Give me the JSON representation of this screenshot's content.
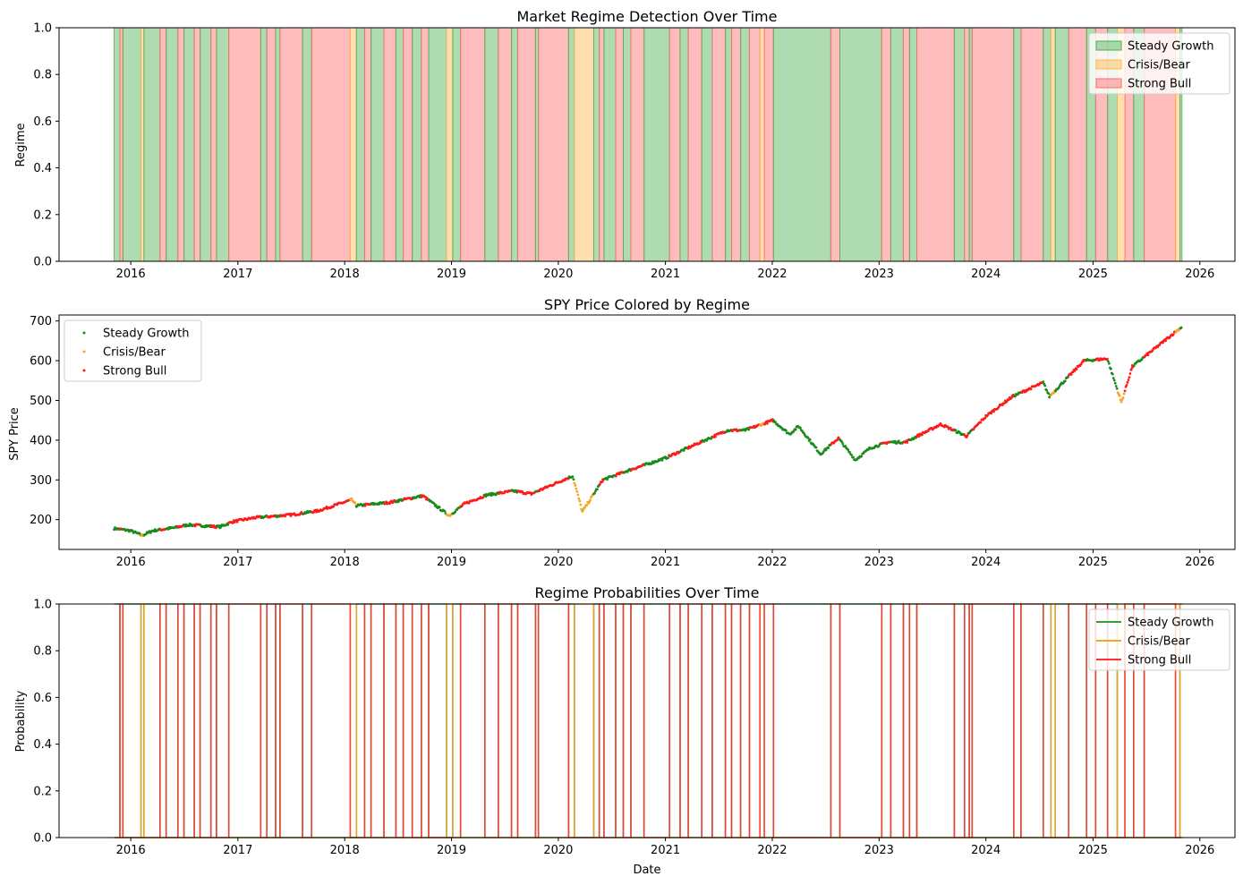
{
  "chart_data": [
    {
      "type": "area",
      "title": "Market Regime Detection Over Time",
      "xlabel": "",
      "ylabel": "Regime",
      "xlim": [
        "2015-05-01",
        "2026-05-01"
      ],
      "ylim": [
        0,
        1
      ],
      "yticks": [
        "0.0",
        "0.2",
        "0.4",
        "0.6",
        "0.8",
        "1.0"
      ],
      "xticks": [
        "2016",
        "2017",
        "2018",
        "2019",
        "2020",
        "2021",
        "2022",
        "2023",
        "2024",
        "2025",
        "2026"
      ],
      "legend": "top-right",
      "series": [
        {
          "name": "Steady Growth",
          "color": "#4caf50"
        },
        {
          "name": "Crisis/Bear",
          "color": "#ffb74d"
        },
        {
          "name": "Strong Bull",
          "color": "#ff6b6b"
        }
      ],
      "regime_spans": [
        {
          "start": "2015-11-05",
          "end": "2015-11-25",
          "regime": "Steady Growth"
        },
        {
          "start": "2015-11-25",
          "end": "2015-12-05",
          "regime": "Strong Bull"
        },
        {
          "start": "2015-12-05",
          "end": "2016-02-05",
          "regime": "Steady Growth"
        },
        {
          "start": "2016-02-05",
          "end": "2016-02-15",
          "regime": "Crisis/Bear"
        },
        {
          "start": "2016-02-15",
          "end": "2016-04-10",
          "regime": "Steady Growth"
        },
        {
          "start": "2016-04-10",
          "end": "2016-05-01",
          "regime": "Strong Bull"
        },
        {
          "start": "2016-05-01",
          "end": "2016-06-10",
          "regime": "Steady Growth"
        },
        {
          "start": "2016-06-10",
          "end": "2016-07-01",
          "regime": "Strong Bull"
        },
        {
          "start": "2016-07-01",
          "end": "2016-08-05",
          "regime": "Steady Growth"
        },
        {
          "start": "2016-08-05",
          "end": "2016-08-25",
          "regime": "Strong Bull"
        },
        {
          "start": "2016-08-25",
          "end": "2016-10-01",
          "regime": "Steady Growth"
        },
        {
          "start": "2016-10-01",
          "end": "2016-10-20",
          "regime": "Strong Bull"
        },
        {
          "start": "2016-10-20",
          "end": "2016-12-01",
          "regime": "Steady Growth"
        },
        {
          "start": "2016-12-01",
          "end": "2017-03-20",
          "regime": "Strong Bull"
        },
        {
          "start": "2017-03-20",
          "end": "2017-04-10",
          "regime": "Steady Growth"
        },
        {
          "start": "2017-04-10",
          "end": "2017-05-10",
          "regime": "Strong Bull"
        },
        {
          "start": "2017-05-10",
          "end": "2017-05-25",
          "regime": "Steady Growth"
        },
        {
          "start": "2017-05-25",
          "end": "2017-08-10",
          "regime": "Strong Bull"
        },
        {
          "start": "2017-08-10",
          "end": "2017-09-10",
          "regime": "Steady Growth"
        },
        {
          "start": "2017-09-10",
          "end": "2018-01-20",
          "regime": "Strong Bull"
        },
        {
          "start": "2018-01-20",
          "end": "2018-02-10",
          "regime": "Crisis/Bear"
        },
        {
          "start": "2018-02-10",
          "end": "2018-03-10",
          "regime": "Steady Growth"
        },
        {
          "start": "2018-03-10",
          "end": "2018-04-01",
          "regime": "Strong Bull"
        },
        {
          "start": "2018-04-01",
          "end": "2018-05-15",
          "regime": "Steady Growth"
        },
        {
          "start": "2018-05-15",
          "end": "2018-06-25",
          "regime": "Strong Bull"
        },
        {
          "start": "2018-06-25",
          "end": "2018-07-20",
          "regime": "Steady Growth"
        },
        {
          "start": "2018-07-20",
          "end": "2018-08-20",
          "regime": "Strong Bull"
        },
        {
          "start": "2018-08-20",
          "end": "2018-09-20",
          "regime": "Steady Growth"
        },
        {
          "start": "2018-09-20",
          "end": "2018-10-15",
          "regime": "Strong Bull"
        },
        {
          "start": "2018-10-15",
          "end": "2018-12-15",
          "regime": "Steady Growth"
        },
        {
          "start": "2018-12-15",
          "end": "2019-01-05",
          "regime": "Crisis/Bear"
        },
        {
          "start": "2019-01-05",
          "end": "2019-02-01",
          "regime": "Steady Growth"
        },
        {
          "start": "2019-02-01",
          "end": "2019-04-25",
          "regime": "Strong Bull"
        },
        {
          "start": "2019-04-25",
          "end": "2019-06-10",
          "regime": "Steady Growth"
        },
        {
          "start": "2019-06-10",
          "end": "2019-07-25",
          "regime": "Strong Bull"
        },
        {
          "start": "2019-07-25",
          "end": "2019-08-15",
          "regime": "Steady Growth"
        },
        {
          "start": "2019-08-15",
          "end": "2019-10-15",
          "regime": "Strong Bull"
        },
        {
          "start": "2019-10-15",
          "end": "2019-10-25",
          "regime": "Steady Growth"
        },
        {
          "start": "2019-10-25",
          "end": "2020-02-05",
          "regime": "Strong Bull"
        },
        {
          "start": "2020-02-05",
          "end": "2020-02-25",
          "regime": "Steady Growth"
        },
        {
          "start": "2020-02-25",
          "end": "2020-05-01",
          "regime": "Crisis/Bear"
        },
        {
          "start": "2020-05-01",
          "end": "2020-05-20",
          "regime": "Steady Growth"
        },
        {
          "start": "2020-05-20",
          "end": "2020-06-05",
          "regime": "Strong Bull"
        },
        {
          "start": "2020-06-05",
          "end": "2020-07-15",
          "regime": "Steady Growth"
        },
        {
          "start": "2020-07-15",
          "end": "2020-08-10",
          "regime": "Strong Bull"
        },
        {
          "start": "2020-08-10",
          "end": "2020-09-05",
          "regime": "Steady Growth"
        },
        {
          "start": "2020-09-05",
          "end": "2020-10-20",
          "regime": "Strong Bull"
        },
        {
          "start": "2020-10-20",
          "end": "2021-01-15",
          "regime": "Steady Growth"
        },
        {
          "start": "2021-01-15",
          "end": "2021-02-20",
          "regime": "Strong Bull"
        },
        {
          "start": "2021-02-20",
          "end": "2021-03-20",
          "regime": "Steady Growth"
        },
        {
          "start": "2021-03-20",
          "end": "2021-05-05",
          "regime": "Strong Bull"
        },
        {
          "start": "2021-05-05",
          "end": "2021-06-10",
          "regime": "Steady Growth"
        },
        {
          "start": "2021-06-10",
          "end": "2021-07-25",
          "regime": "Strong Bull"
        },
        {
          "start": "2021-07-25",
          "end": "2021-08-15",
          "regime": "Steady Growth"
        },
        {
          "start": "2021-08-15",
          "end": "2021-09-15",
          "regime": "Strong Bull"
        },
        {
          "start": "2021-09-15",
          "end": "2021-10-15",
          "regime": "Steady Growth"
        },
        {
          "start": "2021-10-15",
          "end": "2021-11-20",
          "regime": "Strong Bull"
        },
        {
          "start": "2021-11-20",
          "end": "2021-12-05",
          "regime": "Crisis/Bear"
        },
        {
          "start": "2021-12-05",
          "end": "2022-01-05",
          "regime": "Strong Bull"
        },
        {
          "start": "2022-01-05",
          "end": "2022-07-20",
          "regime": "Steady Growth"
        },
        {
          "start": "2022-07-20",
          "end": "2022-08-20",
          "regime": "Strong Bull"
        },
        {
          "start": "2022-08-20",
          "end": "2023-01-10",
          "regime": "Steady Growth"
        },
        {
          "start": "2023-01-10",
          "end": "2023-02-10",
          "regime": "Strong Bull"
        },
        {
          "start": "2023-02-10",
          "end": "2023-03-25",
          "regime": "Steady Growth"
        },
        {
          "start": "2023-03-25",
          "end": "2023-04-15",
          "regime": "Strong Bull"
        },
        {
          "start": "2023-04-15",
          "end": "2023-05-10",
          "regime": "Steady Growth"
        },
        {
          "start": "2023-05-10",
          "end": "2023-09-15",
          "regime": "Strong Bull"
        },
        {
          "start": "2023-09-15",
          "end": "2023-10-20",
          "regime": "Steady Growth"
        },
        {
          "start": "2023-10-20",
          "end": "2023-11-05",
          "regime": "Strong Bull"
        },
        {
          "start": "2023-11-05",
          "end": "2023-11-15",
          "regime": "Steady Growth"
        },
        {
          "start": "2023-11-15",
          "end": "2024-04-05",
          "regime": "Strong Bull"
        },
        {
          "start": "2024-04-05",
          "end": "2024-04-30",
          "regime": "Steady Growth"
        },
        {
          "start": "2024-04-30",
          "end": "2024-07-15",
          "regime": "Strong Bull"
        },
        {
          "start": "2024-07-15",
          "end": "2024-08-10",
          "regime": "Steady Growth"
        },
        {
          "start": "2024-08-10",
          "end": "2024-08-25",
          "regime": "Crisis/Bear"
        },
        {
          "start": "2024-08-25",
          "end": "2024-10-10",
          "regime": "Steady Growth"
        },
        {
          "start": "2024-10-10",
          "end": "2024-12-10",
          "regime": "Strong Bull"
        },
        {
          "start": "2024-12-10",
          "end": "2025-01-10",
          "regime": "Steady Growth"
        },
        {
          "start": "2025-01-10",
          "end": "2025-02-20",
          "regime": "Strong Bull"
        },
        {
          "start": "2025-02-20",
          "end": "2025-03-25",
          "regime": "Steady Growth"
        },
        {
          "start": "2025-03-25",
          "end": "2025-04-20",
          "regime": "Crisis/Bear"
        },
        {
          "start": "2025-04-20",
          "end": "2025-05-20",
          "regime": "Strong Bull"
        },
        {
          "start": "2025-05-20",
          "end": "2025-06-25",
          "regime": "Steady Growth"
        },
        {
          "start": "2025-06-25",
          "end": "2025-10-10",
          "regime": "Strong Bull"
        },
        {
          "start": "2025-10-10",
          "end": "2025-10-25",
          "regime": "Crisis/Bear"
        },
        {
          "start": "2025-10-25",
          "end": "2025-11-01",
          "regime": "Steady Growth"
        }
      ]
    },
    {
      "type": "scatter",
      "title": "SPY Price Colored by Regime",
      "xlabel": "",
      "ylabel": "SPY Price",
      "xlim": [
        "2015-05-01",
        "2026-05-01"
      ],
      "ylim": [
        125,
        715
      ],
      "yticks": [
        "200",
        "300",
        "400",
        "500",
        "600",
        "700"
      ],
      "xticks": [
        "2016",
        "2017",
        "2018",
        "2019",
        "2020",
        "2021",
        "2022",
        "2023",
        "2024",
        "2025",
        "2026"
      ],
      "legend": "top-left",
      "series": [
        {
          "name": "Steady Growth",
          "color": "#1a8a1a"
        },
        {
          "name": "Crisis/Bear",
          "color": "#f5a623"
        },
        {
          "name": "Strong Bull",
          "color": "#ff1a1a"
        }
      ],
      "price_path": [
        {
          "x": "2015-11-05",
          "y": 178
        },
        {
          "x": "2016-01-01",
          "y": 172
        },
        {
          "x": "2016-02-10",
          "y": 160
        },
        {
          "x": "2016-03-15",
          "y": 172
        },
        {
          "x": "2016-06-01",
          "y": 180
        },
        {
          "x": "2016-07-15",
          "y": 187
        },
        {
          "x": "2016-11-01",
          "y": 182
        },
        {
          "x": "2016-12-15",
          "y": 195
        },
        {
          "x": "2017-03-01",
          "y": 205
        },
        {
          "x": "2017-07-01",
          "y": 212
        },
        {
          "x": "2017-10-01",
          "y": 222
        },
        {
          "x": "2018-01-25",
          "y": 250
        },
        {
          "x": "2018-02-10",
          "y": 235
        },
        {
          "x": "2018-06-01",
          "y": 243
        },
        {
          "x": "2018-09-25",
          "y": 260
        },
        {
          "x": "2018-12-24",
          "y": 210
        },
        {
          "x": "2019-02-15",
          "y": 240
        },
        {
          "x": "2019-05-01",
          "y": 262
        },
        {
          "x": "2019-08-01",
          "y": 272
        },
        {
          "x": "2019-10-01",
          "y": 265
        },
        {
          "x": "2020-02-19",
          "y": 310
        },
        {
          "x": "2020-03-23",
          "y": 220
        },
        {
          "x": "2020-06-01",
          "y": 300
        },
        {
          "x": "2020-09-01",
          "y": 325
        },
        {
          "x": "2021-01-01",
          "y": 355
        },
        {
          "x": "2021-04-01",
          "y": 385
        },
        {
          "x": "2021-08-01",
          "y": 425
        },
        {
          "x": "2021-10-01",
          "y": 425
        },
        {
          "x": "2022-01-03",
          "y": 450
        },
        {
          "x": "2022-03-01",
          "y": 415
        },
        {
          "x": "2022-04-01",
          "y": 435
        },
        {
          "x": "2022-06-15",
          "y": 365
        },
        {
          "x": "2022-08-15",
          "y": 405
        },
        {
          "x": "2022-10-12",
          "y": 350
        },
        {
          "x": "2022-12-01",
          "y": 380
        },
        {
          "x": "2023-02-01",
          "y": 395
        },
        {
          "x": "2023-04-01",
          "y": 395
        },
        {
          "x": "2023-07-31",
          "y": 440
        },
        {
          "x": "2023-10-27",
          "y": 410
        },
        {
          "x": "2024-01-01",
          "y": 460
        },
        {
          "x": "2024-04-01",
          "y": 510
        },
        {
          "x": "2024-07-15",
          "y": 545
        },
        {
          "x": "2024-08-05",
          "y": 510
        },
        {
          "x": "2024-12-01",
          "y": 600
        },
        {
          "x": "2025-02-19",
          "y": 605
        },
        {
          "x": "2025-04-08",
          "y": 495
        },
        {
          "x": "2025-05-15",
          "y": 585
        },
        {
          "x": "2025-10-31",
          "y": 685
        }
      ]
    },
    {
      "type": "line",
      "title": "Regime Probabilities Over Time",
      "xlabel": "Date",
      "ylabel": "Probability",
      "xlim": [
        "2015-05-01",
        "2026-05-01"
      ],
      "ylim": [
        0,
        1
      ],
      "yticks": [
        "0.0",
        "0.2",
        "0.4",
        "0.6",
        "0.8",
        "1.0"
      ],
      "xticks": [
        "2016",
        "2017",
        "2018",
        "2019",
        "2020",
        "2021",
        "2022",
        "2023",
        "2024",
        "2025",
        "2026"
      ],
      "legend": "top-right",
      "series": [
        {
          "name": "Steady Growth",
          "color": "#3a9a3a"
        },
        {
          "name": "Crisis/Bear",
          "color": "#f5a623"
        },
        {
          "name": "Strong Bull",
          "color": "#ff3030"
        }
      ]
    }
  ]
}
